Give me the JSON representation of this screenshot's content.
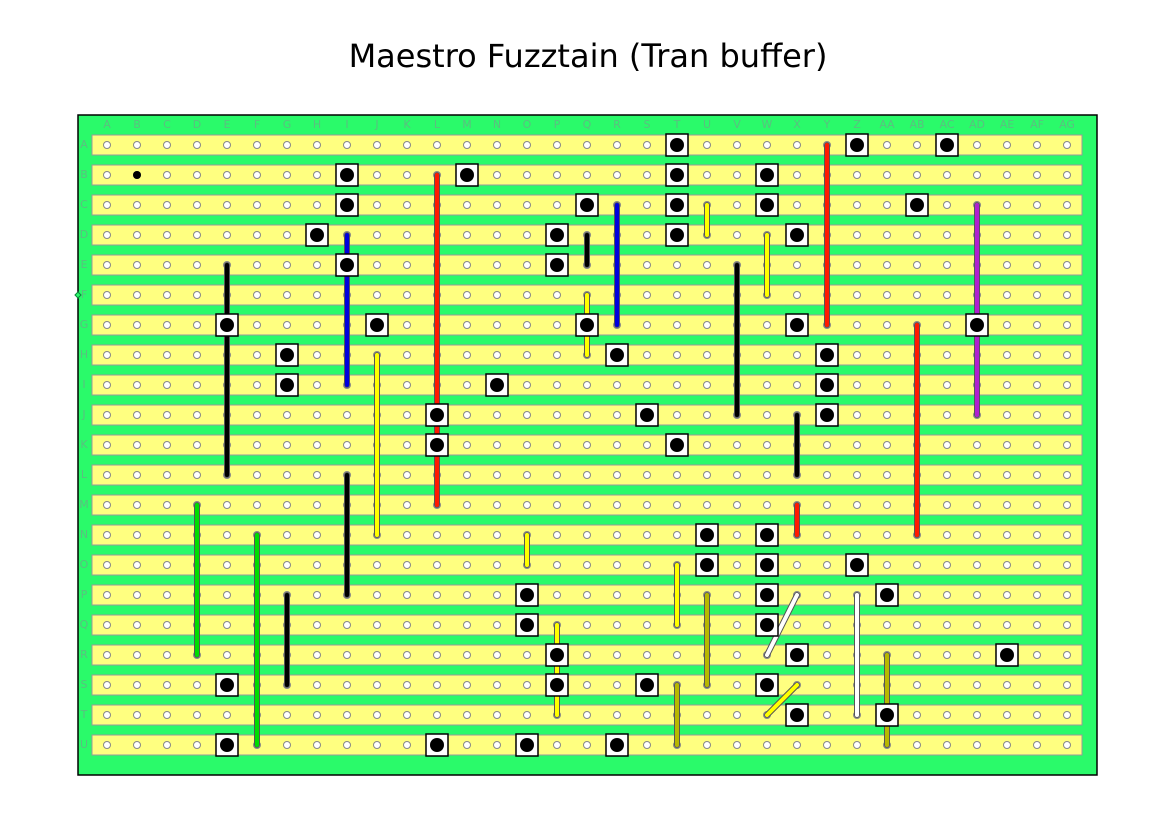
{
  "title": "Maestro Fuzztain (Tran buffer)",
  "columns": [
    "A",
    "B",
    "C",
    "D",
    "E",
    "F",
    "G",
    "H",
    "I",
    "J",
    "K",
    "L",
    "M",
    "N",
    "O",
    "P",
    "Q",
    "R",
    "S",
    "T",
    "U",
    "V",
    "W",
    "X",
    "Y",
    "Z",
    "AA",
    "AB",
    "AC",
    "AD",
    "AE",
    "AF",
    "AG"
  ],
  "rows": [
    "A",
    "B",
    "C",
    "D",
    "E",
    "F",
    "G",
    "H",
    "I",
    "J",
    "K",
    "L",
    "M",
    "N",
    "O",
    "P",
    "Q",
    "R",
    "S",
    "T",
    "U"
  ]
}
